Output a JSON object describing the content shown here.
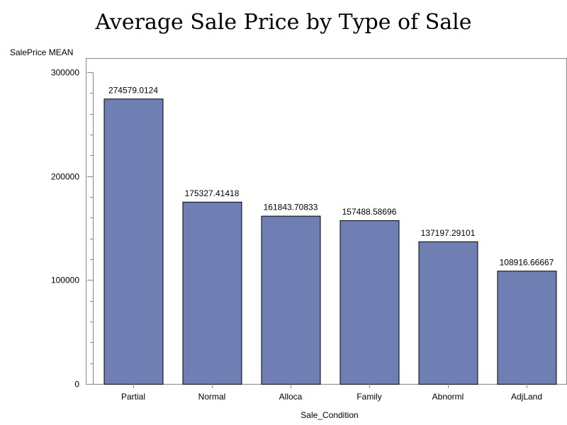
{
  "chart_data": {
    "type": "bar",
    "title": "Average Sale Price by Type of Sale",
    "xlabel": "Sale_Condition",
    "ylabel": "SalePrice MEAN",
    "categories": [
      "Partial",
      "Normal",
      "Alloca",
      "Family",
      "Abnorml",
      "AdjLand"
    ],
    "values": [
      274579.0124,
      175327.41418,
      161843.70833,
      157488.58696,
      137197.29101,
      108916.66667
    ],
    "value_labels": [
      "274579.0124",
      "175327.41418",
      "161843.70833",
      "157488.58696",
      "137197.29101",
      "108916.66667"
    ],
    "ylim": [
      0,
      300000
    ],
    "yticks": [
      0,
      100000,
      200000,
      300000
    ],
    "ytick_labels": [
      "0",
      "100000",
      "200000",
      "300000"
    ],
    "minor_tick_step": 20000,
    "bar_color": "#6f7fb4",
    "frame_color": "#888888",
    "grid": false,
    "legend": "none"
  }
}
